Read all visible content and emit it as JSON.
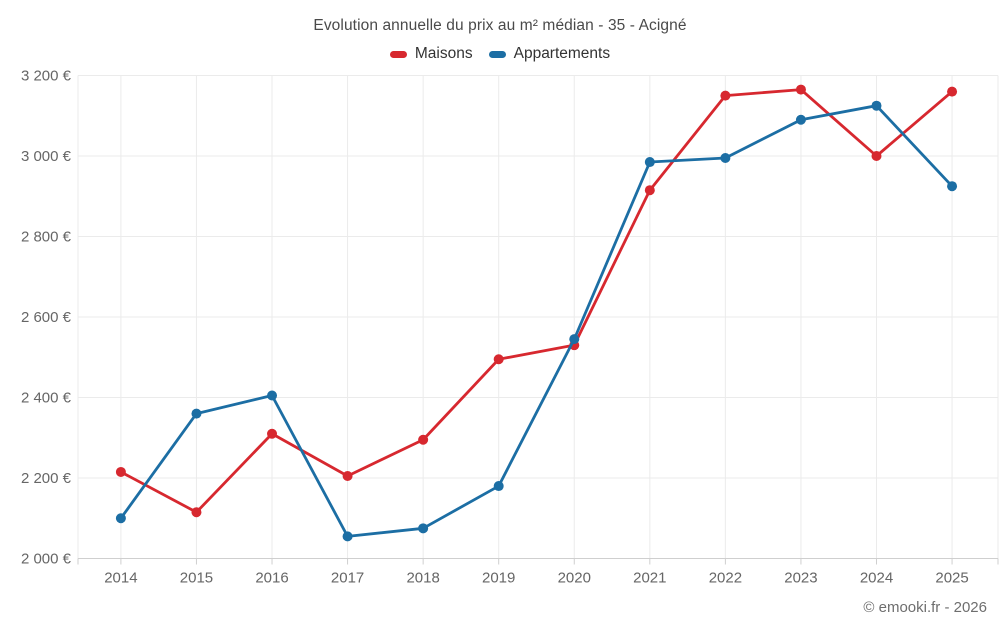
{
  "title": "Evolution annuelle du prix au m² médian - 35 - Acigné",
  "footer": "© emooki.fr - 2026",
  "colors": {
    "maisons": "#d7282f",
    "appartements": "#1c6ea4",
    "grid": "#ebebeb",
    "axis_line": "#cfcfcf",
    "axis_text": "#666666",
    "title_text": "#4a4a4a"
  },
  "chart_data": {
    "type": "line",
    "title": "Evolution annuelle du prix au m² médian - 35 - Acigné",
    "x": [
      2014,
      2015,
      2016,
      2017,
      2018,
      2019,
      2020,
      2021,
      2022,
      2023,
      2024,
      2025
    ],
    "x_labels": [
      "2014",
      "2015",
      "2016",
      "2017",
      "2018",
      "2019",
      "2020",
      "2021",
      "2022",
      "2023",
      "2024",
      "2025"
    ],
    "series": [
      {
        "name": "Maisons",
        "color": "#d7282f",
        "values": [
          2215,
          2115,
          2310,
          2205,
          2295,
          2495,
          2530,
          2915,
          3150,
          3165,
          3000,
          3160
        ]
      },
      {
        "name": "Appartements",
        "color": "#1c6ea4",
        "values": [
          2100,
          2360,
          2405,
          2055,
          2075,
          2180,
          2545,
          2985,
          2995,
          3090,
          3125,
          2925
        ]
      }
    ],
    "xlabel": "",
    "ylabel": "",
    "ylim": [
      2000,
      3200
    ],
    "y_ticks": [
      2000,
      2200,
      2400,
      2600,
      2800,
      3000,
      3200
    ],
    "y_tick_labels": [
      "2 000 €",
      "2 200 €",
      "2 400 €",
      "2 600 €",
      "2 800 €",
      "3 000 €",
      "3 200 €"
    ],
    "grid": true,
    "legend_position": "top",
    "unit": "€"
  }
}
